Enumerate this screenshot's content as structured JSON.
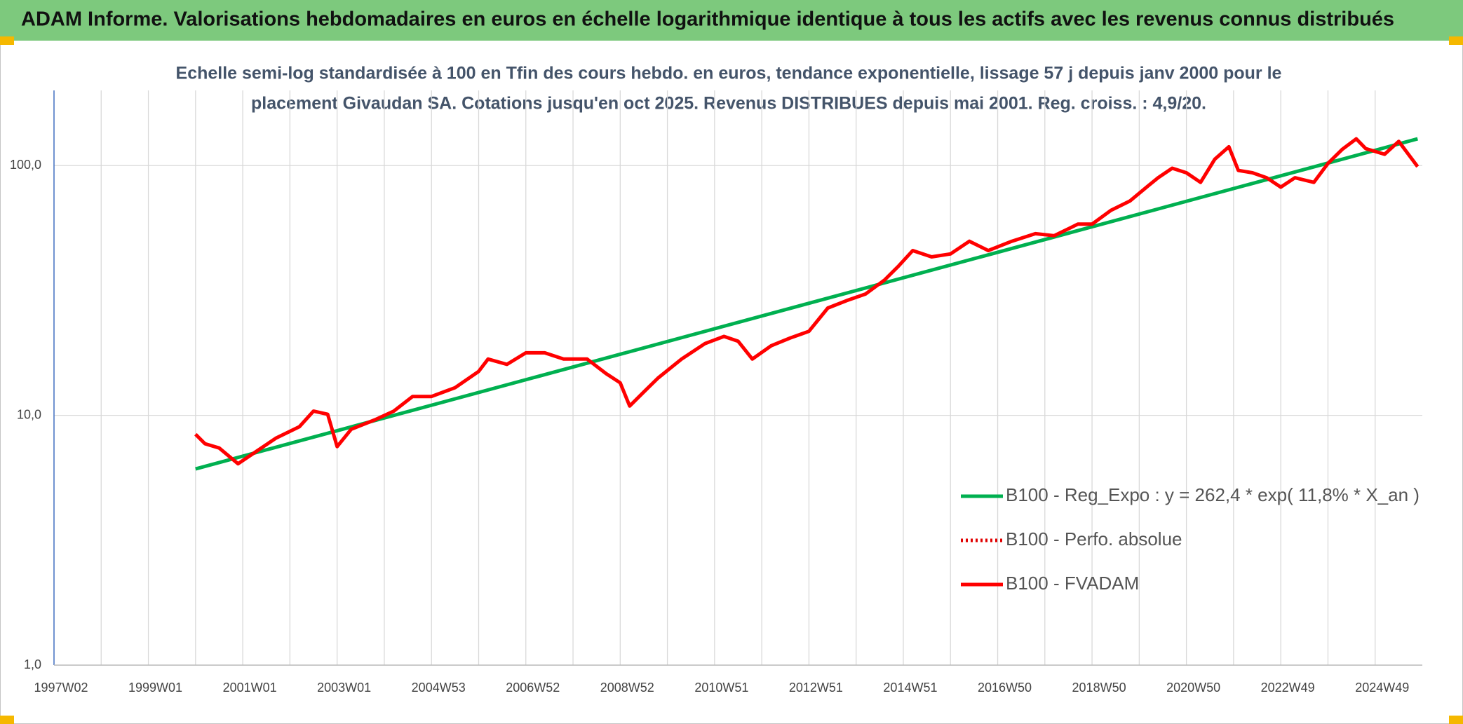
{
  "chart_data": {
    "type": "line",
    "title": "ADAM Informe. Valorisations hebdomadaires en euros en échelle logarithmique identique à tous les actifs avec les revenus connus distribués",
    "subtitle": [
      "Echelle semi-log standardisée à 100 en Tfin des cours hebdo. en euros, tendance exponentielle, lissage 57 j depuis janv 2000 pour le",
      "placement Givaudan SA. Cotations jusqu'en oct 2025. Revenus DISTRIBUES depuis mai 2001. Reg. croiss. : 4,9/20."
    ],
    "log_scale": true,
    "grid": true,
    "xlim": [
      1997.0,
      2026.0
    ],
    "xticks": [
      {
        "value": 1997.0,
        "label": "1997W02"
      },
      {
        "value": 1999.0,
        "label": "1999W01"
      },
      {
        "value": 2001.0,
        "label": "2001W01"
      },
      {
        "value": 2003.0,
        "label": "2003W01"
      },
      {
        "value": 2005.0,
        "label": "2004W53"
      },
      {
        "value": 2007.0,
        "label": "2006W52"
      },
      {
        "value": 2009.0,
        "label": "2008W52"
      },
      {
        "value": 2011.0,
        "label": "2010W51"
      },
      {
        "value": 2013.0,
        "label": "2012W51"
      },
      {
        "value": 2015.0,
        "label": "2014W51"
      },
      {
        "value": 2017.0,
        "label": "2016W50"
      },
      {
        "value": 2019.0,
        "label": "2018W50"
      },
      {
        "value": 2021.0,
        "label": "2020W50"
      },
      {
        "value": 2023.0,
        "label": "2022W49"
      },
      {
        "value": 2025.0,
        "label": "2024W49"
      }
    ],
    "xgrid": [
      1998,
      2000,
      2002,
      2004,
      2006,
      2008,
      2010,
      2012,
      2014,
      2016,
      2018,
      2020,
      2022,
      2024
    ],
    "ylim": [
      1,
      200
    ],
    "yticks": [
      {
        "value": 1,
        "label": "1,0"
      },
      {
        "value": 10,
        "label": "10,0"
      },
      {
        "value": 100,
        "label": "100,0"
      }
    ],
    "series": [
      {
        "name": "B100 - Reg_Expo : y = 262,4 * exp( 11,8% *  X_an )",
        "color": "#00b050",
        "style": "solid",
        "x": [
          2000.0,
          2025.9
        ],
        "values": [
          6.1,
          128
        ]
      },
      {
        "name": "B100 - Perfo. absolue",
        "color": "#e00000",
        "style": "dotted",
        "x": [],
        "values": []
      },
      {
        "name": "B100 - FVADAM",
        "color": "#ff0000",
        "style": "solid",
        "x": [
          2000.0,
          2000.2,
          2000.5,
          2000.9,
          2001.3,
          2001.7,
          2002.2,
          2002.5,
          2002.8,
          2003.0,
          2003.3,
          2003.8,
          2004.2,
          2004.6,
          2005.0,
          2005.5,
          2006.0,
          2006.2,
          2006.6,
          2007.0,
          2007.4,
          2007.8,
          2008.3,
          2008.7,
          2009.0,
          2009.2,
          2009.5,
          2009.8,
          2010.3,
          2010.8,
          2011.2,
          2011.5,
          2011.8,
          2012.2,
          2012.6,
          2013.0,
          2013.4,
          2013.8,
          2014.2,
          2014.6,
          2014.9,
          2015.2,
          2015.6,
          2016.0,
          2016.4,
          2016.8,
          2017.3,
          2017.8,
          2018.2,
          2018.7,
          2019.0,
          2019.4,
          2019.8,
          2020.2,
          2020.4,
          2020.7,
          2021.0,
          2021.3,
          2021.6,
          2021.9,
          2022.1,
          2022.4,
          2022.7,
          2023.0,
          2023.3,
          2023.7,
          2024.0,
          2024.3,
          2024.6,
          2024.8,
          2025.2,
          2025.5,
          2025.9
        ],
        "values": [
          8.4,
          7.7,
          7.4,
          6.4,
          7.2,
          8.1,
          9.0,
          10.4,
          10.1,
          7.5,
          8.8,
          9.6,
          10.4,
          11.9,
          11.9,
          12.9,
          15.0,
          16.8,
          16.0,
          17.8,
          17.8,
          16.8,
          16.8,
          14.7,
          13.5,
          10.9,
          12.4,
          14.1,
          16.8,
          19.4,
          20.7,
          19.8,
          16.8,
          19.0,
          20.4,
          21.7,
          26.9,
          28.8,
          30.6,
          34.8,
          39.6,
          45.7,
          43.1,
          44.3,
          49.8,
          45.7,
          49.8,
          53.4,
          52.4,
          58.3,
          58.3,
          66.2,
          72.1,
          83.3,
          89.4,
          97.6,
          93.6,
          85.7,
          106,
          119,
          95.7,
          93.6,
          89.4,
          82,
          89.4,
          85.7,
          102,
          116,
          128,
          117,
          111,
          125,
          99
        ]
      }
    ]
  }
}
